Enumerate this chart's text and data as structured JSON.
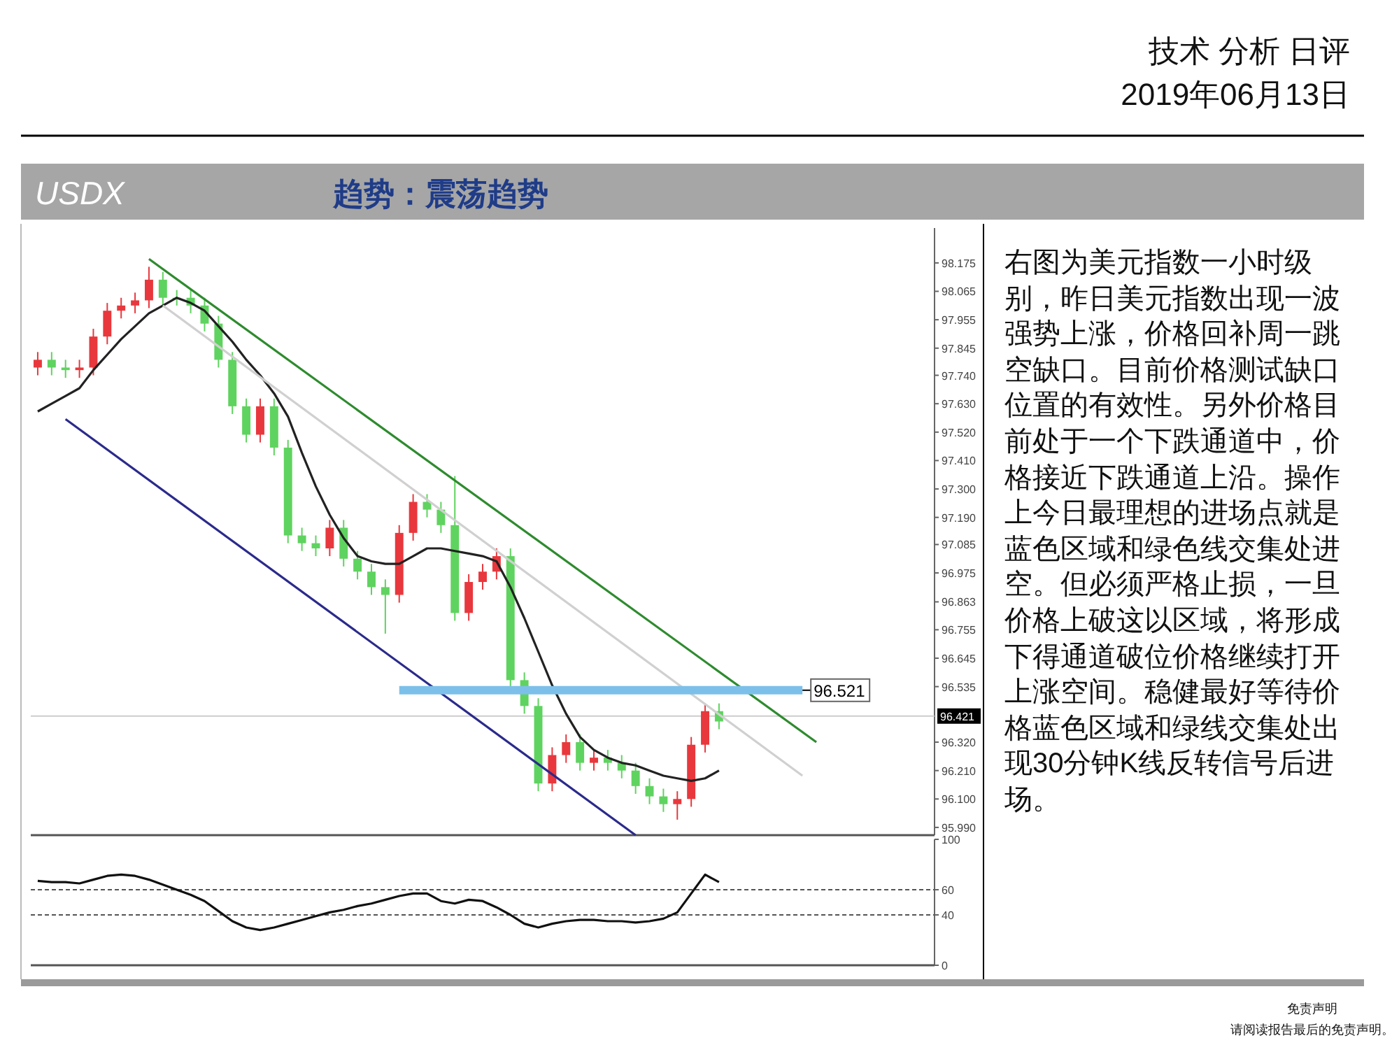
{
  "chart_data": [
    {
      "type": "other",
      "title": "USDX",
      "subtitle": "趋势：震荡趋势",
      "annotations": [
        "技术 分析 日评",
        "2019年06月13日",
        "右图为美元指数一小时级别，昨日美元指数出现一波强势上涨，价格回补周一跳空缺口。目前价格测试缺口位置的有效性。另外价格目前处于一个下跌通道中，价格接近下跌通道上沿。操作上今日最理想的进场点就是蓝色区域和绿色线交集处进空。但必须严格止损，一旦价格上破这以区域，将形成下得通道破位价格继续打开上涨空间。稳健最好等待价格蓝色区域和绿线交集处出现30分钟K线反转信号后进场。",
        "免责声明",
        "请阅读报告最后的免责声明。"
      ]
    },
    {
      "type": "candlestick",
      "categories": [
        null,
        null,
        null,
        null,
        null,
        null,
        null,
        null,
        null,
        null,
        null,
        null,
        null,
        null,
        null,
        null,
        null,
        null,
        null,
        null,
        null,
        null,
        null,
        null,
        null,
        null,
        null,
        null,
        null,
        null,
        null,
        null,
        null,
        null,
        null,
        null,
        null,
        null,
        null,
        null,
        null,
        null,
        null,
        null,
        null,
        null,
        null,
        null,
        null,
        null,
        null,
        null,
        null,
        null,
        null,
        null,
        null,
        null,
        null,
        null,
        null,
        null,
        null,
        null,
        null
      ],
      "ylim": [
        95.96,
        98.31
      ],
      "tick_labels": "y",
      "yticks": [
        {
          "value": 95.99,
          "label": "95.990"
        },
        {
          "value": 96.1,
          "label": "96.100"
        },
        {
          "value": 96.21,
          "label": "96.210"
        },
        {
          "value": 96.32,
          "label": "96.320"
        },
        {
          "value": 96.535,
          "label": "96.535"
        },
        {
          "value": 96.645,
          "label": "96.645"
        },
        {
          "value": 96.755,
          "label": "96.755"
        },
        {
          "value": 96.863,
          "label": "96.863"
        },
        {
          "value": 96.975,
          "label": "96.975"
        },
        {
          "value": 97.085,
          "label": "97.085"
        },
        {
          "value": 97.19,
          "label": "97.190"
        },
        {
          "value": 97.3,
          "label": "97.300"
        },
        {
          "value": 97.41,
          "label": "97.410"
        },
        {
          "value": 97.52,
          "label": "97.520"
        },
        {
          "value": 97.63,
          "label": "97.630"
        },
        {
          "value": 97.74,
          "label": "97.740"
        },
        {
          "value": 97.845,
          "label": "97.845"
        },
        {
          "value": 97.955,
          "label": "97.955"
        },
        {
          "value": 98.065,
          "label": "98.065"
        },
        {
          "value": 98.175,
          "label": "98.175"
        }
      ],
      "ohlc": [
        [
          97.77,
          97.83,
          97.74,
          97.8
        ],
        [
          97.8,
          97.83,
          97.74,
          97.77
        ],
        [
          97.77,
          97.8,
          97.73,
          97.76
        ],
        [
          97.76,
          97.8,
          97.73,
          97.77
        ],
        [
          97.77,
          97.92,
          97.74,
          97.89
        ],
        [
          97.89,
          98.02,
          97.86,
          97.99
        ],
        [
          97.99,
          98.04,
          97.96,
          98.01
        ],
        [
          98.01,
          98.06,
          97.98,
          98.03
        ],
        [
          98.03,
          98.16,
          98.0,
          98.11
        ],
        [
          98.11,
          98.14,
          98.01,
          98.04
        ],
        [
          98.04,
          98.07,
          98.01,
          98.04
        ],
        [
          98.04,
          98.07,
          97.98,
          98.01
        ],
        [
          98.01,
          98.04,
          97.91,
          97.94
        ],
        [
          97.94,
          97.97,
          97.77,
          97.8
        ],
        [
          97.8,
          97.83,
          97.59,
          97.62
        ],
        [
          97.62,
          97.65,
          97.48,
          97.51
        ],
        [
          97.51,
          97.65,
          97.48,
          97.62
        ],
        [
          97.62,
          97.65,
          97.43,
          97.46
        ],
        [
          97.46,
          97.49,
          97.09,
          97.12
        ],
        [
          97.12,
          97.15,
          97.06,
          97.09
        ],
        [
          97.09,
          97.12,
          97.04,
          97.07
        ],
        [
          97.07,
          97.18,
          97.04,
          97.15
        ],
        [
          97.15,
          97.18,
          97.0,
          97.03
        ],
        [
          97.03,
          97.06,
          96.95,
          96.98
        ],
        [
          96.98,
          97.01,
          96.89,
          96.92
        ],
        [
          96.92,
          96.95,
          96.74,
          96.89
        ],
        [
          96.89,
          97.16,
          96.86,
          97.13
        ],
        [
          97.13,
          97.28,
          97.1,
          97.25
        ],
        [
          97.25,
          97.28,
          97.19,
          97.22
        ],
        [
          97.22,
          97.25,
          97.13,
          97.16
        ],
        [
          97.16,
          97.35,
          96.79,
          96.82
        ],
        [
          96.82,
          96.97,
          96.79,
          96.94
        ],
        [
          96.94,
          97.01,
          96.91,
          96.98
        ],
        [
          96.98,
          97.07,
          96.95,
          97.04
        ],
        [
          97.04,
          97.07,
          96.53,
          96.56
        ],
        [
          96.56,
          96.59,
          96.43,
          96.46
        ],
        [
          96.46,
          96.49,
          96.13,
          96.16
        ],
        [
          96.16,
          96.3,
          96.13,
          96.27
        ],
        [
          96.27,
          96.35,
          96.24,
          96.32
        ],
        [
          96.32,
          96.35,
          96.21,
          96.24
        ],
        [
          96.24,
          96.29,
          96.21,
          96.26
        ],
        [
          96.26,
          96.29,
          96.21,
          96.24
        ],
        [
          96.24,
          96.27,
          96.18,
          96.21
        ],
        [
          96.21,
          96.24,
          96.12,
          96.15
        ],
        [
          96.15,
          96.18,
          96.08,
          96.11
        ],
        [
          96.11,
          96.14,
          96.05,
          96.08
        ],
        [
          96.08,
          96.13,
          96.02,
          96.1
        ],
        [
          96.1,
          96.34,
          96.07,
          96.31
        ],
        [
          96.31,
          96.47,
          96.28,
          96.44
        ],
        [
          96.44,
          96.47,
          96.37,
          96.4
        ],
        null,
        null,
        null,
        null,
        null,
        null,
        null,
        null,
        null,
        null,
        null,
        null,
        null,
        null,
        null
      ],
      "colors": [
        "#e8383d",
        "#5fd35f",
        "#5fd35f",
        "#e8383d",
        "#e8383d",
        "#e8383d",
        "#e8383d",
        "#e8383d",
        "#e8383d",
        "#5fd35f",
        "#5fd35f",
        "#5fd35f",
        "#5fd35f",
        "#5fd35f",
        "#5fd35f",
        "#5fd35f",
        "#e8383d",
        "#5fd35f",
        "#5fd35f",
        "#5fd35f",
        "#5fd35f",
        "#e8383d",
        "#5fd35f",
        "#5fd35f",
        "#5fd35f",
        "#5fd35f",
        "#e8383d",
        "#e8383d",
        "#5fd35f",
        "#5fd35f",
        "#5fd35f",
        "#e8383d",
        "#e8383d",
        "#e8383d",
        "#5fd35f",
        "#5fd35f",
        "#5fd35f",
        "#e8383d",
        "#e8383d",
        "#5fd35f",
        "#e8383d",
        "#5fd35f",
        "#5fd35f",
        "#5fd35f",
        "#5fd35f",
        "#5fd35f",
        "#e8383d",
        "#e8383d",
        "#e8383d",
        "#5fd35f",
        null,
        null,
        null,
        null,
        null,
        null,
        null,
        null,
        null,
        null,
        null,
        null,
        null,
        null,
        null
      ],
      "series": [
        {
          "type": "line",
          "color": "#222222",
          "values": [
            97.6,
            97.63,
            97.66,
            97.69,
            97.76,
            97.82,
            97.88,
            97.93,
            97.98,
            98.01,
            98.04,
            98.02,
            97.99,
            97.93,
            97.87,
            97.8,
            97.74,
            97.67,
            97.58,
            97.44,
            97.31,
            97.2,
            97.11,
            97.04,
            97.02,
            97.01,
            97.01,
            97.04,
            97.07,
            97.07,
            97.06,
            97.05,
            97.04,
            97.02,
            96.92,
            96.8,
            96.67,
            96.54,
            96.43,
            96.34,
            96.29,
            96.26,
            96.24,
            96.23,
            96.21,
            96.19,
            96.18,
            96.17,
            96.18,
            96.21,
            null,
            null,
            null,
            null,
            null,
            null,
            null,
            null,
            null,
            null,
            null,
            null,
            null,
            null,
            null
          ]
        },
        {
          "type": "line",
          "color": "#2e8b2e",
          "values": [
            null,
            null,
            null,
            null,
            null,
            null,
            null,
            null,
            98.19,
            null,
            null,
            null,
            null,
            null,
            null,
            null,
            null,
            null,
            null,
            null,
            null,
            null,
            null,
            null,
            null,
            null,
            null,
            null,
            null,
            null,
            null,
            null,
            null,
            null,
            null,
            null,
            null,
            null,
            null,
            null,
            null,
            null,
            null,
            null,
            null,
            null,
            null,
            null,
            null,
            null,
            null,
            null,
            null,
            null,
            null,
            null,
            96.32,
            null,
            null,
            null,
            null,
            null,
            null,
            null,
            null
          ]
        },
        {
          "type": "line",
          "color": "#d0d0d0",
          "values": [
            null,
            null,
            null,
            null,
            null,
            null,
            null,
            null,
            null,
            98.01,
            null,
            null,
            null,
            null,
            null,
            null,
            null,
            null,
            null,
            null,
            null,
            null,
            null,
            null,
            null,
            null,
            null,
            null,
            null,
            null,
            null,
            null,
            null,
            null,
            null,
            null,
            null,
            null,
            null,
            null,
            null,
            null,
            null,
            null,
            null,
            null,
            null,
            null,
            null,
            null,
            null,
            null,
            null,
            null,
            null,
            96.19,
            null,
            null,
            null,
            null,
            null,
            null,
            null,
            null,
            null
          ]
        },
        {
          "type": "line",
          "color": "#2a2a8c",
          "values": [
            null,
            null,
            97.57,
            null,
            null,
            null,
            null,
            null,
            null,
            null,
            null,
            null,
            null,
            null,
            null,
            null,
            null,
            null,
            null,
            null,
            null,
            null,
            null,
            null,
            null,
            null,
            null,
            null,
            null,
            null,
            null,
            null,
            null,
            null,
            null,
            null,
            null,
            null,
            null,
            null,
            null,
            null,
            null,
            95.96,
            null,
            null,
            null,
            null,
            null,
            null,
            null,
            null,
            null,
            null,
            null,
            null,
            null,
            null,
            null,
            null,
            null,
            null,
            null,
            null,
            null
          ]
        },
        {
          "type": "line",
          "color": "#7cc0ea",
          "values": [
            null,
            null,
            null,
            null,
            null,
            null,
            null,
            null,
            null,
            null,
            null,
            null,
            null,
            null,
            null,
            null,
            null,
            null,
            null,
            null,
            null,
            null,
            null,
            null,
            null,
            null,
            96.521,
            null,
            null,
            null,
            null,
            null,
            null,
            null,
            null,
            null,
            null,
            null,
            null,
            null,
            null,
            null,
            null,
            null,
            null,
            null,
            null,
            null,
            null,
            null,
            null,
            null,
            null,
            null,
            null,
            96.521,
            null,
            null,
            null,
            null,
            null,
            null,
            null,
            null,
            null
          ],
          "value_labels": [
            null,
            null,
            null,
            null,
            null,
            null,
            null,
            null,
            null,
            null,
            null,
            null,
            null,
            null,
            null,
            null,
            null,
            null,
            null,
            null,
            null,
            null,
            null,
            null,
            null,
            null,
            null,
            null,
            null,
            null,
            null,
            null,
            null,
            null,
            null,
            null,
            null,
            null,
            null,
            null,
            null,
            null,
            null,
            null,
            null,
            null,
            null,
            null,
            null,
            null,
            null,
            null,
            null,
            null,
            null,
            "96.521",
            null,
            null,
            null,
            null,
            null,
            null,
            null,
            null,
            null
          ]
        }
      ],
      "ref_lines": [
        {
          "axis": "y",
          "value": 96.421,
          "label": "96.421",
          "color": "#cccccc"
        }
      ]
    },
    {
      "type": "line",
      "categories": [
        null,
        null,
        null,
        null,
        null,
        null,
        null,
        null,
        null,
        null,
        null,
        null,
        null,
        null,
        null,
        null,
        null,
        null,
        null,
        null,
        null,
        null,
        null,
        null,
        null,
        null,
        null,
        null,
        null,
        null,
        null,
        null,
        null,
        null,
        null,
        null,
        null,
        null,
        null,
        null,
        null,
        null,
        null,
        null,
        null,
        null,
        null,
        null,
        null,
        null,
        null,
        null,
        null,
        null,
        null,
        null,
        null,
        null,
        null,
        null,
        null,
        null,
        null,
        null,
        null
      ],
      "ylim": [
        0,
        100
      ],
      "yticks": [
        0,
        40,
        60,
        100
      ],
      "tick_labels": "y",
      "ref_lines": [
        {
          "axis": "y",
          "value": 60,
          "line_style": "dashed",
          "color": "#555555"
        },
        {
          "axis": "y",
          "value": 40,
          "line_style": "dashed",
          "color": "#555555"
        }
      ],
      "series": [
        {
          "color": "#111111",
          "values": [
            67,
            66,
            66,
            65,
            68,
            71,
            72,
            71,
            68,
            64,
            60,
            56,
            51,
            43,
            35,
            30,
            28,
            30,
            33,
            36,
            39,
            42,
            44,
            47,
            49,
            52,
            55,
            57,
            57,
            51,
            49,
            52,
            51,
            46,
            40,
            33,
            30,
            33,
            35,
            36,
            36,
            35,
            35,
            34,
            35,
            37,
            42,
            57,
            72,
            66,
            null,
            null,
            null,
            null,
            null,
            null,
            null,
            null,
            null,
            null,
            null,
            null,
            null,
            null,
            null
          ]
        }
      ]
    }
  ]
}
